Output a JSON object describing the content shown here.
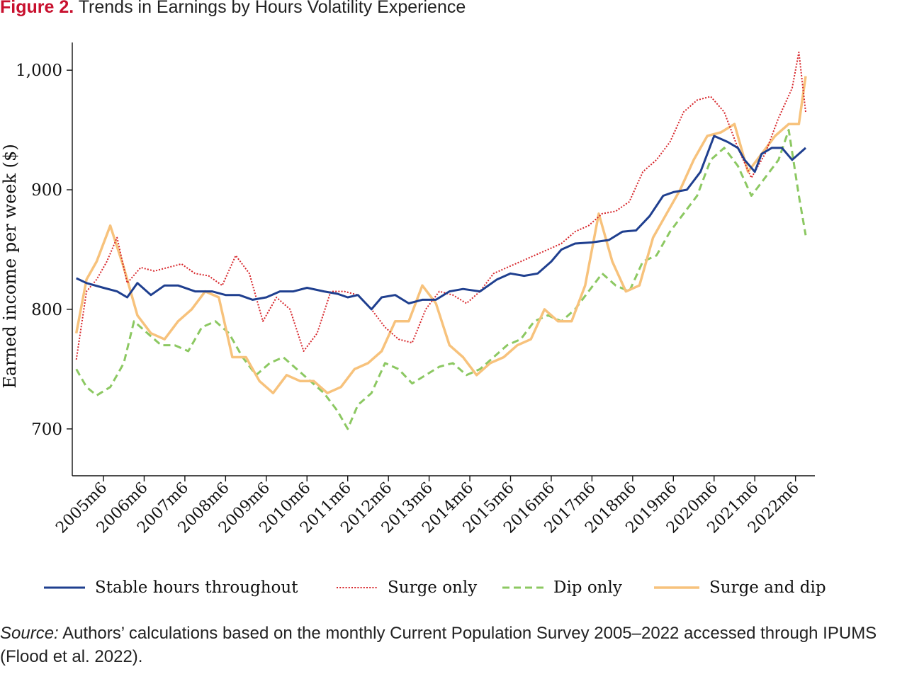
{
  "figure": {
    "label": "Figure 2.",
    "title": "Trends in Earnings by Hours Volatility Experience"
  },
  "source": {
    "label": "Source:",
    "text": "Authors’ calculations based on the monthly Current Population Survey 2005–2022 accessed through IPUMS (Flood et al. 2022)."
  },
  "chart_data": {
    "type": "line",
    "ylabel": "Earned income per week ($)",
    "xlabel": "",
    "ylim": [
      662,
      1022
    ],
    "yticks": [
      700,
      800,
      900,
      1000
    ],
    "ytick_labels": [
      "700",
      "800",
      "900",
      "1,000"
    ],
    "x_start": "2004m10",
    "x_end": "2022m9",
    "xticks": [
      "2005m6",
      "2006m6",
      "2007m6",
      "2008m6",
      "2009m6",
      "2010m6",
      "2011m6",
      "2012m6",
      "2013m6",
      "2014m6",
      "2015m6",
      "2016m6",
      "2017m6",
      "2018m6",
      "2019m6",
      "2020m6",
      "2021m6",
      "2022m6"
    ],
    "grid": false,
    "legend_position": "bottom",
    "series": [
      {
        "name": "Stable hours throughout",
        "color": "#1f3f8f",
        "style": "solid",
        "points": [
          [
            "2004m10",
            826
          ],
          [
            "2005m1",
            822
          ],
          [
            "2005m6",
            818
          ],
          [
            "2005m10",
            815
          ],
          [
            "2006m1",
            810
          ],
          [
            "2006m4",
            822
          ],
          [
            "2006m8",
            812
          ],
          [
            "2006m12",
            820
          ],
          [
            "2007m4",
            820
          ],
          [
            "2007m9",
            815
          ],
          [
            "2008m2",
            815
          ],
          [
            "2008m6",
            812
          ],
          [
            "2008m10",
            812
          ],
          [
            "2009m2",
            808
          ],
          [
            "2009m6",
            810
          ],
          [
            "2009m10",
            815
          ],
          [
            "2010m2",
            815
          ],
          [
            "2010m6",
            818
          ],
          [
            "2010m11",
            815
          ],
          [
            "2011m3",
            813
          ],
          [
            "2011m6",
            810
          ],
          [
            "2011m9",
            812
          ],
          [
            "2012m1",
            800
          ],
          [
            "2012m4",
            810
          ],
          [
            "2012m8",
            812
          ],
          [
            "2012m12",
            805
          ],
          [
            "2013m4",
            808
          ],
          [
            "2013m8",
            808
          ],
          [
            "2013m12",
            815
          ],
          [
            "2014m4",
            817
          ],
          [
            "2014m9",
            815
          ],
          [
            "2015m2",
            825
          ],
          [
            "2015m6",
            830
          ],
          [
            "2015m10",
            828
          ],
          [
            "2016m2",
            830
          ],
          [
            "2016m6",
            840
          ],
          [
            "2016m9",
            850
          ],
          [
            "2017m1",
            855
          ],
          [
            "2017m6",
            856
          ],
          [
            "2017m11",
            858
          ],
          [
            "2018m3",
            865
          ],
          [
            "2018m7",
            866
          ],
          [
            "2018m11",
            878
          ],
          [
            "2019m3",
            895
          ],
          [
            "2019m6",
            898
          ],
          [
            "2019m10",
            900
          ],
          [
            "2020m2",
            915
          ],
          [
            "2020m6",
            945
          ],
          [
            "2020m10",
            940
          ],
          [
            "2021m1",
            935
          ],
          [
            "2021m3",
            925
          ],
          [
            "2021m6",
            915
          ],
          [
            "2021m8",
            930
          ],
          [
            "2021m11",
            935
          ],
          [
            "2022m2",
            935
          ],
          [
            "2022m5",
            925
          ],
          [
            "2022m7",
            930
          ],
          [
            "2022m9",
            935
          ]
        ]
      },
      {
        "name": "Surge only",
        "color": "#d7262b",
        "style": "dotted",
        "points": [
          [
            "2004m10",
            758
          ],
          [
            "2005m1",
            815
          ],
          [
            "2005m4",
            825
          ],
          [
            "2005m7",
            840
          ],
          [
            "2005m10",
            860
          ],
          [
            "2006m1",
            822
          ],
          [
            "2006m5",
            835
          ],
          [
            "2006m9",
            832
          ],
          [
            "2007m1",
            835
          ],
          [
            "2007m5",
            838
          ],
          [
            "2007m9",
            830
          ],
          [
            "2008m1",
            828
          ],
          [
            "2008m5",
            820
          ],
          [
            "2008m9",
            845
          ],
          [
            "2009m1",
            830
          ],
          [
            "2009m5",
            790
          ],
          [
            "2009m9",
            810
          ],
          [
            "2010m1",
            800
          ],
          [
            "2010m5",
            765
          ],
          [
            "2010m9",
            780
          ],
          [
            "2011m1",
            815
          ],
          [
            "2011m5",
            815
          ],
          [
            "2011m9",
            812
          ],
          [
            "2012m1",
            800
          ],
          [
            "2012m5",
            785
          ],
          [
            "2012m9",
            775
          ],
          [
            "2013m1",
            772
          ],
          [
            "2013m5",
            800
          ],
          [
            "2013m9",
            815
          ],
          [
            "2014m1",
            812
          ],
          [
            "2014m5",
            805
          ],
          [
            "2014m9",
            815
          ],
          [
            "2015m1",
            830
          ],
          [
            "2015m5",
            835
          ],
          [
            "2015m9",
            840
          ],
          [
            "2016m1",
            845
          ],
          [
            "2016m5",
            850
          ],
          [
            "2016m9",
            855
          ],
          [
            "2017m1",
            865
          ],
          [
            "2017m5",
            870
          ],
          [
            "2017m9",
            880
          ],
          [
            "2018m1",
            882
          ],
          [
            "2018m5",
            890
          ],
          [
            "2018m9",
            915
          ],
          [
            "2019m1",
            925
          ],
          [
            "2019m5",
            940
          ],
          [
            "2019m9",
            965
          ],
          [
            "2020m1",
            975
          ],
          [
            "2020m5",
            978
          ],
          [
            "2020m9",
            965
          ],
          [
            "2021m1",
            935
          ],
          [
            "2021m5",
            910
          ],
          [
            "2021m9",
            930
          ],
          [
            "2022m1",
            960
          ],
          [
            "2022m5",
            985
          ],
          [
            "2022m7",
            1015
          ],
          [
            "2022m9",
            965
          ]
        ]
      },
      {
        "name": "Dip only",
        "color": "#8cc862",
        "style": "dashed",
        "points": [
          [
            "2004m10",
            750
          ],
          [
            "2005m1",
            735
          ],
          [
            "2005m4",
            728
          ],
          [
            "2005m8",
            735
          ],
          [
            "2005m12",
            755
          ],
          [
            "2006m3",
            790
          ],
          [
            "2006m7",
            780
          ],
          [
            "2006m11",
            770
          ],
          [
            "2007m3",
            770
          ],
          [
            "2007m7",
            765
          ],
          [
            "2007m11",
            785
          ],
          [
            "2008m3",
            790
          ],
          [
            "2008m7",
            780
          ],
          [
            "2008m11",
            760
          ],
          [
            "2009m3",
            745
          ],
          [
            "2009m7",
            755
          ],
          [
            "2009m11",
            760
          ],
          [
            "2010m3",
            750
          ],
          [
            "2010m7",
            740
          ],
          [
            "2010m11",
            730
          ],
          [
            "2011m3",
            715
          ],
          [
            "2011m6",
            700
          ],
          [
            "2011m9",
            720
          ],
          [
            "2012m1",
            730
          ],
          [
            "2012m5",
            755
          ],
          [
            "2012m9",
            750
          ],
          [
            "2013m1",
            738
          ],
          [
            "2013m5",
            745
          ],
          [
            "2013m9",
            752
          ],
          [
            "2014m1",
            755
          ],
          [
            "2014m5",
            745
          ],
          [
            "2014m9",
            750
          ],
          [
            "2015m1",
            760
          ],
          [
            "2015m5",
            770
          ],
          [
            "2015m9",
            775
          ],
          [
            "2016m1",
            790
          ],
          [
            "2016m5",
            795
          ],
          [
            "2016m9",
            790
          ],
          [
            "2017m1",
            800
          ],
          [
            "2017m5",
            815
          ],
          [
            "2017m9",
            830
          ],
          [
            "2018m1",
            820
          ],
          [
            "2018m5",
            815
          ],
          [
            "2018m9",
            840
          ],
          [
            "2019m1",
            845
          ],
          [
            "2019m5",
            865
          ],
          [
            "2019m9",
            880
          ],
          [
            "2020m1",
            895
          ],
          [
            "2020m5",
            925
          ],
          [
            "2020m9",
            935
          ],
          [
            "2021m1",
            920
          ],
          [
            "2021m5",
            895
          ],
          [
            "2021m9",
            910
          ],
          [
            "2022m1",
            925
          ],
          [
            "2022m4",
            950
          ],
          [
            "2022m7",
            895
          ],
          [
            "2022m9",
            862
          ]
        ]
      },
      {
        "name": "Surge and dip",
        "color": "#f7c27c",
        "style": "solid",
        "points": [
          [
            "2004m10",
            780
          ],
          [
            "2005m1",
            825
          ],
          [
            "2005m4",
            840
          ],
          [
            "2005m8",
            870
          ],
          [
            "2005m12",
            835
          ],
          [
            "2006m4",
            795
          ],
          [
            "2006m8",
            780
          ],
          [
            "2006m12",
            775
          ],
          [
            "2007m4",
            790
          ],
          [
            "2007m8",
            800
          ],
          [
            "2007m12",
            815
          ],
          [
            "2008m4",
            810
          ],
          [
            "2008m8",
            760
          ],
          [
            "2008m12",
            760
          ],
          [
            "2009m4",
            740
          ],
          [
            "2009m8",
            730
          ],
          [
            "2009m12",
            745
          ],
          [
            "2010m4",
            740
          ],
          [
            "2010m8",
            740
          ],
          [
            "2010m12",
            730
          ],
          [
            "2011m4",
            735
          ],
          [
            "2011m8",
            750
          ],
          [
            "2011m12",
            755
          ],
          [
            "2012m4",
            765
          ],
          [
            "2012m8",
            790
          ],
          [
            "2012m12",
            790
          ],
          [
            "2013m4",
            820
          ],
          [
            "2013m8",
            805
          ],
          [
            "2013m12",
            770
          ],
          [
            "2014m4",
            760
          ],
          [
            "2014m8",
            745
          ],
          [
            "2014m12",
            755
          ],
          [
            "2015m4",
            760
          ],
          [
            "2015m8",
            770
          ],
          [
            "2015m12",
            775
          ],
          [
            "2016m4",
            800
          ],
          [
            "2016m8",
            790
          ],
          [
            "2016m12",
            790
          ],
          [
            "2017m4",
            820
          ],
          [
            "2017m8",
            880
          ],
          [
            "2017m12",
            840
          ],
          [
            "2018m4",
            815
          ],
          [
            "2018m8",
            820
          ],
          [
            "2018m12",
            860
          ],
          [
            "2019m4",
            880
          ],
          [
            "2019m8",
            900
          ],
          [
            "2019m12",
            925
          ],
          [
            "2020m4",
            945
          ],
          [
            "2020m8",
            948
          ],
          [
            "2020m12",
            955
          ],
          [
            "2021m4",
            915
          ],
          [
            "2021m8",
            930
          ],
          [
            "2021m12",
            945
          ],
          [
            "2022m4",
            955
          ],
          [
            "2022m7",
            955
          ],
          [
            "2022m9",
            995
          ]
        ]
      }
    ]
  }
}
